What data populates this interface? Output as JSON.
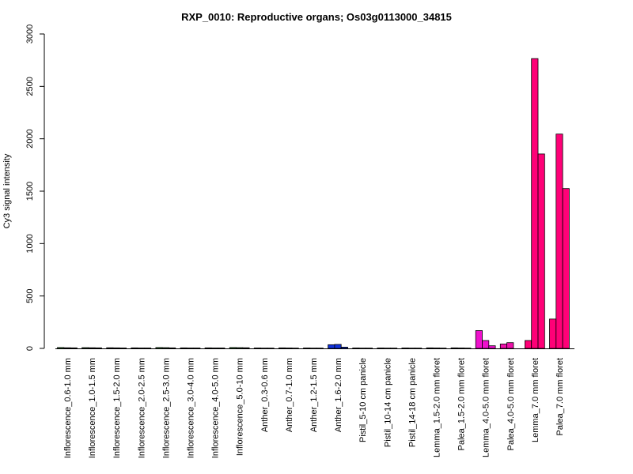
{
  "chart_data": {
    "type": "bar",
    "title": "RXP_0010: Reproductive organs; Os03g0113000_34815",
    "xlabel": "",
    "ylabel": "Cy3 signal intensity",
    "ylim": [
      0,
      3000
    ],
    "yticks": [
      "0",
      "500",
      "1000",
      "1500",
      "2000",
      "2500",
      "3000"
    ],
    "grid": false,
    "legend": "none",
    "groups": [
      {
        "label": "Inflorescence_0.6-1.0 mm",
        "color": "#33cc33",
        "values": [
          8,
          6,
          5
        ]
      },
      {
        "label": "Inflorescence_1.0-1.5 mm",
        "color": "#33cc33",
        "values": [
          7,
          6,
          5
        ]
      },
      {
        "label": "Inflorescence_1.5-2.0 mm",
        "color": "#33cc33",
        "values": [
          6,
          5,
          4
        ]
      },
      {
        "label": "Inflorescence_2.0-2.5 mm",
        "color": "#33cc33",
        "values": [
          5,
          4,
          4
        ]
      },
      {
        "label": "Inflorescence_2.5-3.0 mm",
        "color": "#33cc33",
        "values": [
          8,
          7,
          5
        ]
      },
      {
        "label": "Inflorescence_3.0-4.0 mm",
        "color": "#33cc33",
        "values": [
          5,
          4,
          4
        ]
      },
      {
        "label": "Inflorescence_4.0-5.0 mm",
        "color": "#33cc33",
        "values": [
          5,
          4,
          4
        ]
      },
      {
        "label": "Inflorescence_5.0-10 mm",
        "color": "#33cc33",
        "values": [
          8,
          7,
          6
        ]
      },
      {
        "label": "Anther_0.3-0.6 mm",
        "color": "#3333ff",
        "values": [
          4,
          3,
          3
        ]
      },
      {
        "label": "Anther_0.7-1.0 mm",
        "color": "#3333ff",
        "values": [
          5,
          4,
          3
        ]
      },
      {
        "label": "Anther_1.2-1.5 mm",
        "color": "#3333ff",
        "values": [
          4,
          3,
          3
        ]
      },
      {
        "label": "Anther_1.6-2.0 mm",
        "color": "#1133dd",
        "values": [
          35,
          38,
          12
        ]
      },
      {
        "label": "Pistil_5-10 cm panicle",
        "color": "#cc33cc",
        "values": [
          4,
          3,
          3
        ]
      },
      {
        "label": "Pistil_10-14 cm panicle",
        "color": "#cc33cc",
        "values": [
          4,
          3,
          3
        ]
      },
      {
        "label": "Pistil_14-18 cm panicle",
        "color": "#cc33cc",
        "values": [
          4,
          3,
          3
        ]
      },
      {
        "label": "Lemma_1.5-2.0 mm floret",
        "color": "#cc33cc",
        "values": [
          5,
          4,
          3
        ]
      },
      {
        "label": "Palea_1.5-2.0 mm floret",
        "color": "#cc33cc",
        "values": [
          5,
          4,
          3
        ]
      },
      {
        "label": "Lemma_4.0-5.0 mm floret",
        "color": "#ee11cc",
        "values": [
          170,
          75,
          25
        ]
      },
      {
        "label": "Palea_4.0-5.0 mm floret",
        "color": "#ee11aa",
        "values": [
          42,
          55,
          0
        ]
      },
      {
        "label": "Lemma_7.0 mm floret",
        "color": "#ff0077",
        "values": [
          75,
          2765,
          1855
        ]
      },
      {
        "label": "Palea_7.0 mm floret",
        "color": "#ff0077",
        "values": [
          280,
          2045,
          1525
        ]
      }
    ]
  }
}
